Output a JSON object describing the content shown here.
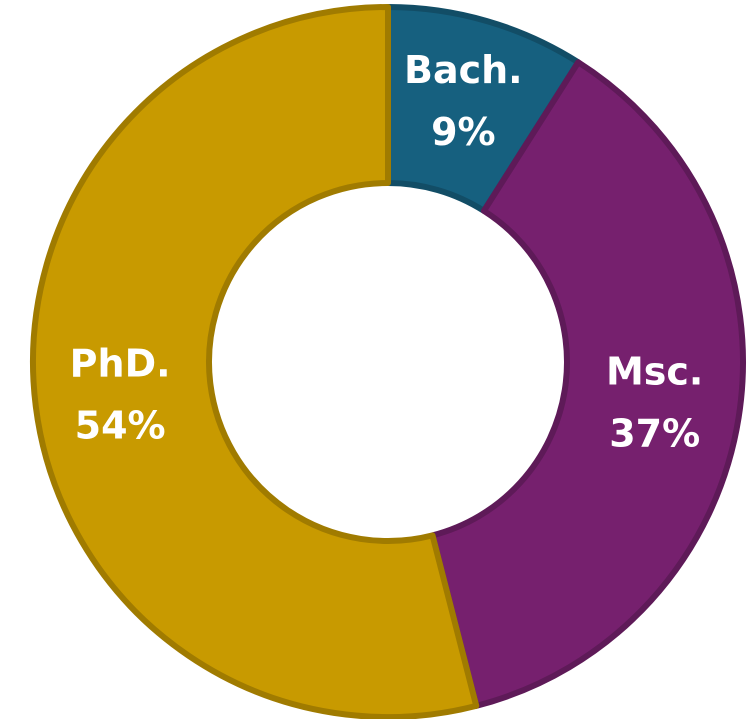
{
  "chart_data": {
    "type": "donut",
    "categories": [
      "Bach.",
      "Msc.",
      "PhD."
    ],
    "values": [
      9,
      37,
      54
    ],
    "value_labels": [
      "9%",
      "37%",
      "54%"
    ],
    "colors": [
      "#16607f",
      "#76206e",
      "#c89a00"
    ]
  }
}
